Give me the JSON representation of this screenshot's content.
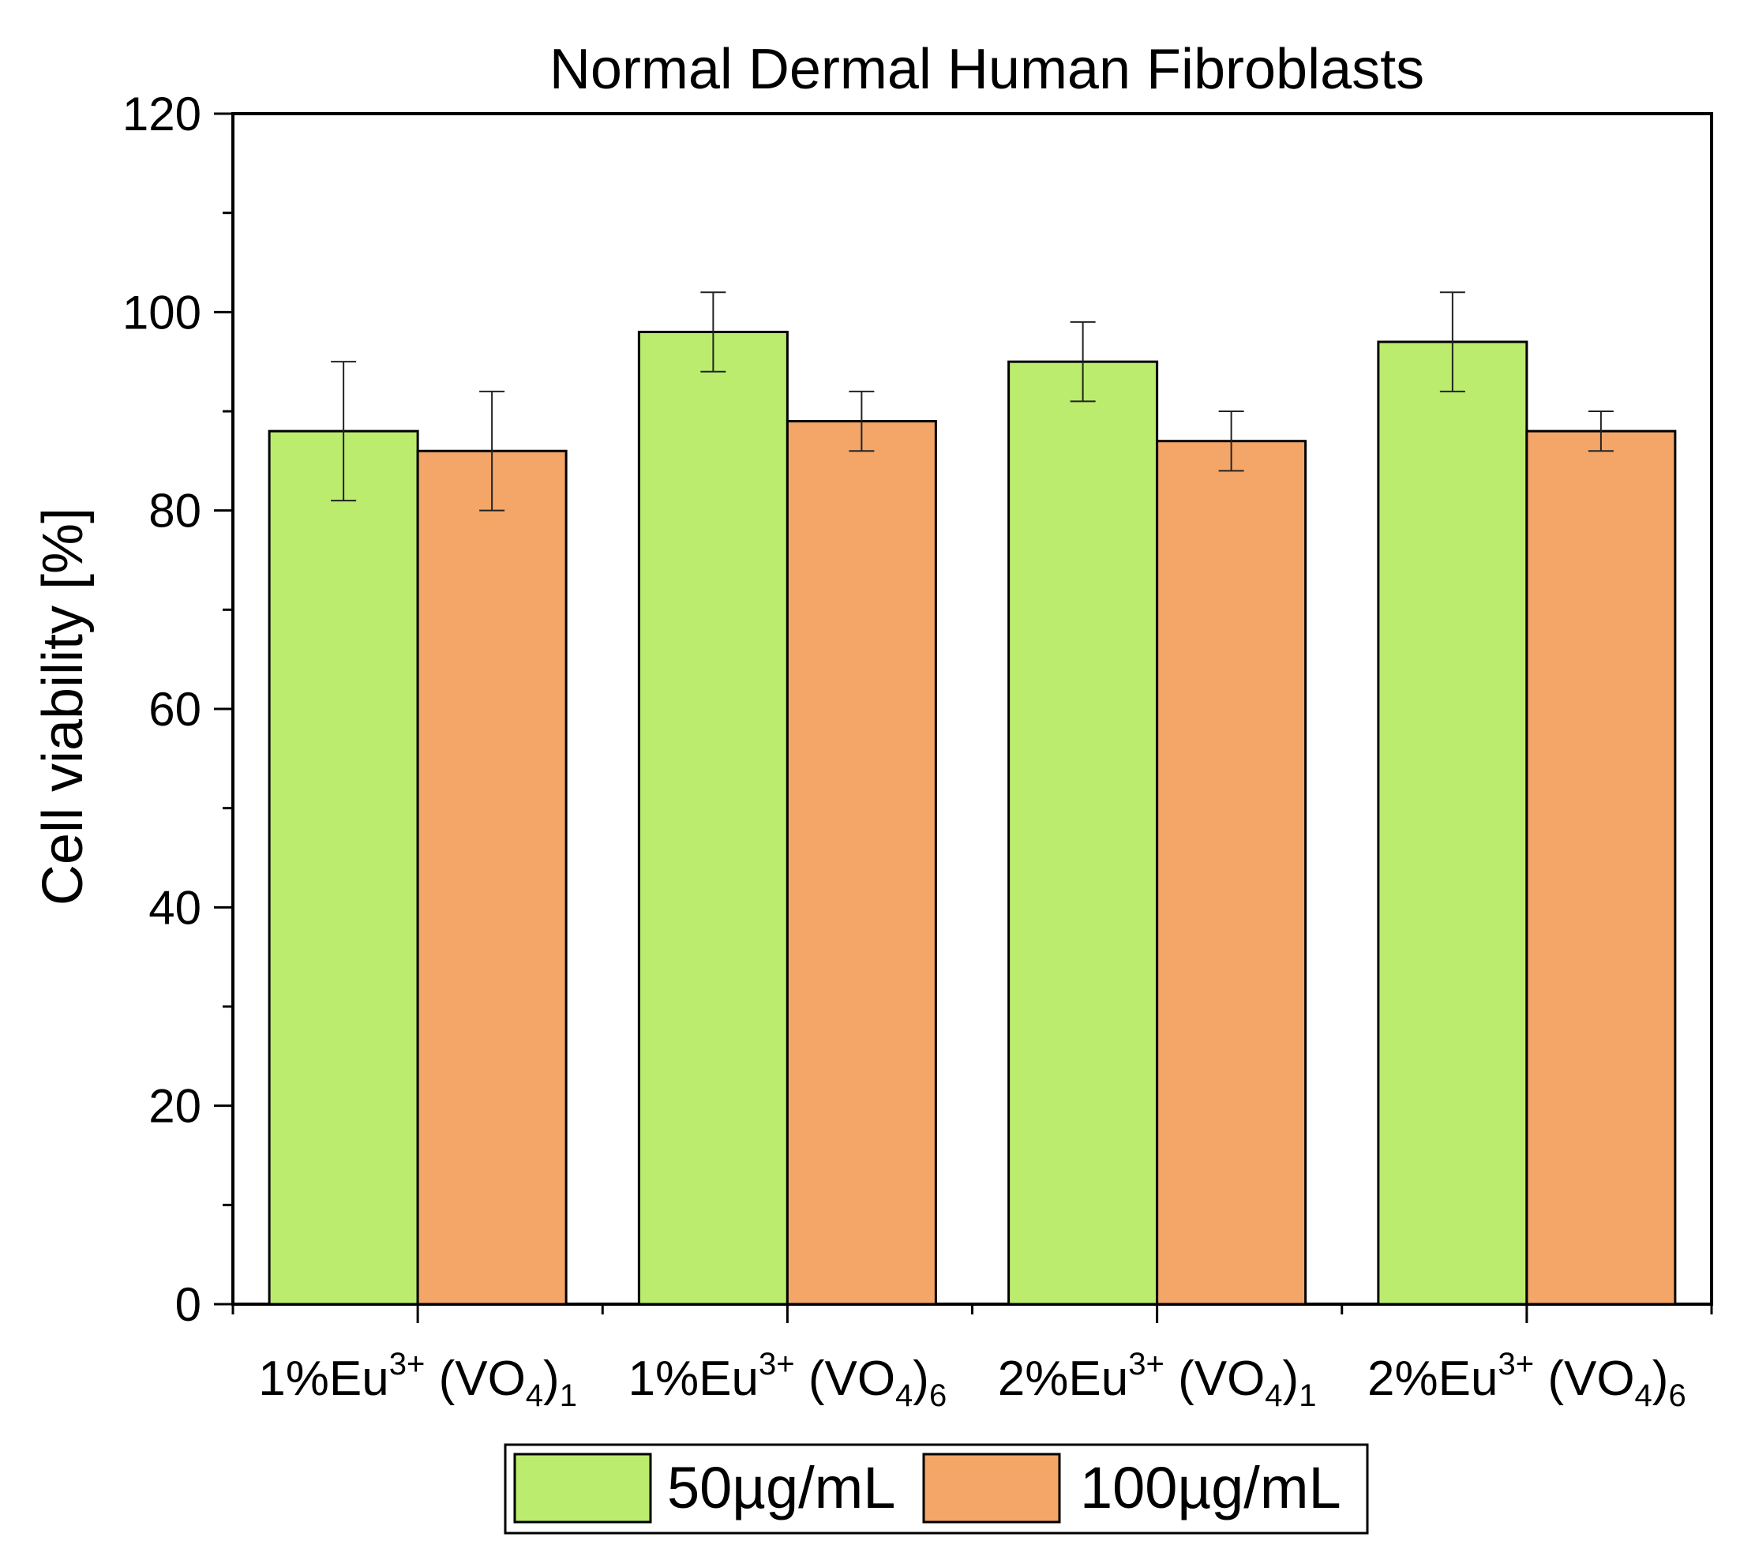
{
  "chart_data": {
    "type": "bar",
    "title": "Normal Dermal Human Fibroblasts",
    "xlabel": "",
    "ylabel": "Cell viability [%]",
    "ylim": [
      0,
      120
    ],
    "yticks": [
      0,
      20,
      40,
      60,
      80,
      100,
      120
    ],
    "categories": [
      {
        "base": "1%Eu",
        "sup": "3+",
        "mid": " (VO",
        "sub1": "4",
        "close": ")",
        "sub2": "1"
      },
      {
        "base": "1%Eu",
        "sup": "3+",
        "mid": " (VO",
        "sub1": "4",
        "close": ")",
        "sub2": "6"
      },
      {
        "base": "2%Eu",
        "sup": "3+",
        "mid": " (VO",
        "sub1": "4",
        "close": ")",
        "sub2": "1"
      },
      {
        "base": "2%Eu",
        "sup": "3+",
        "mid": " (VO",
        "sub1": "4",
        "close": ")",
        "sub2": "6"
      }
    ],
    "series": [
      {
        "name": "50µg/mL",
        "color": "#bbec6d",
        "values": [
          88,
          98,
          95,
          97
        ],
        "errors": [
          7,
          4,
          4,
          5
        ]
      },
      {
        "name": "100µg/mL",
        "color": "#f3a667",
        "values": [
          86,
          89,
          87,
          88
        ],
        "errors": [
          6,
          3,
          3,
          2
        ]
      }
    ],
    "legend_position": "bottom-center",
    "grid": false
  }
}
